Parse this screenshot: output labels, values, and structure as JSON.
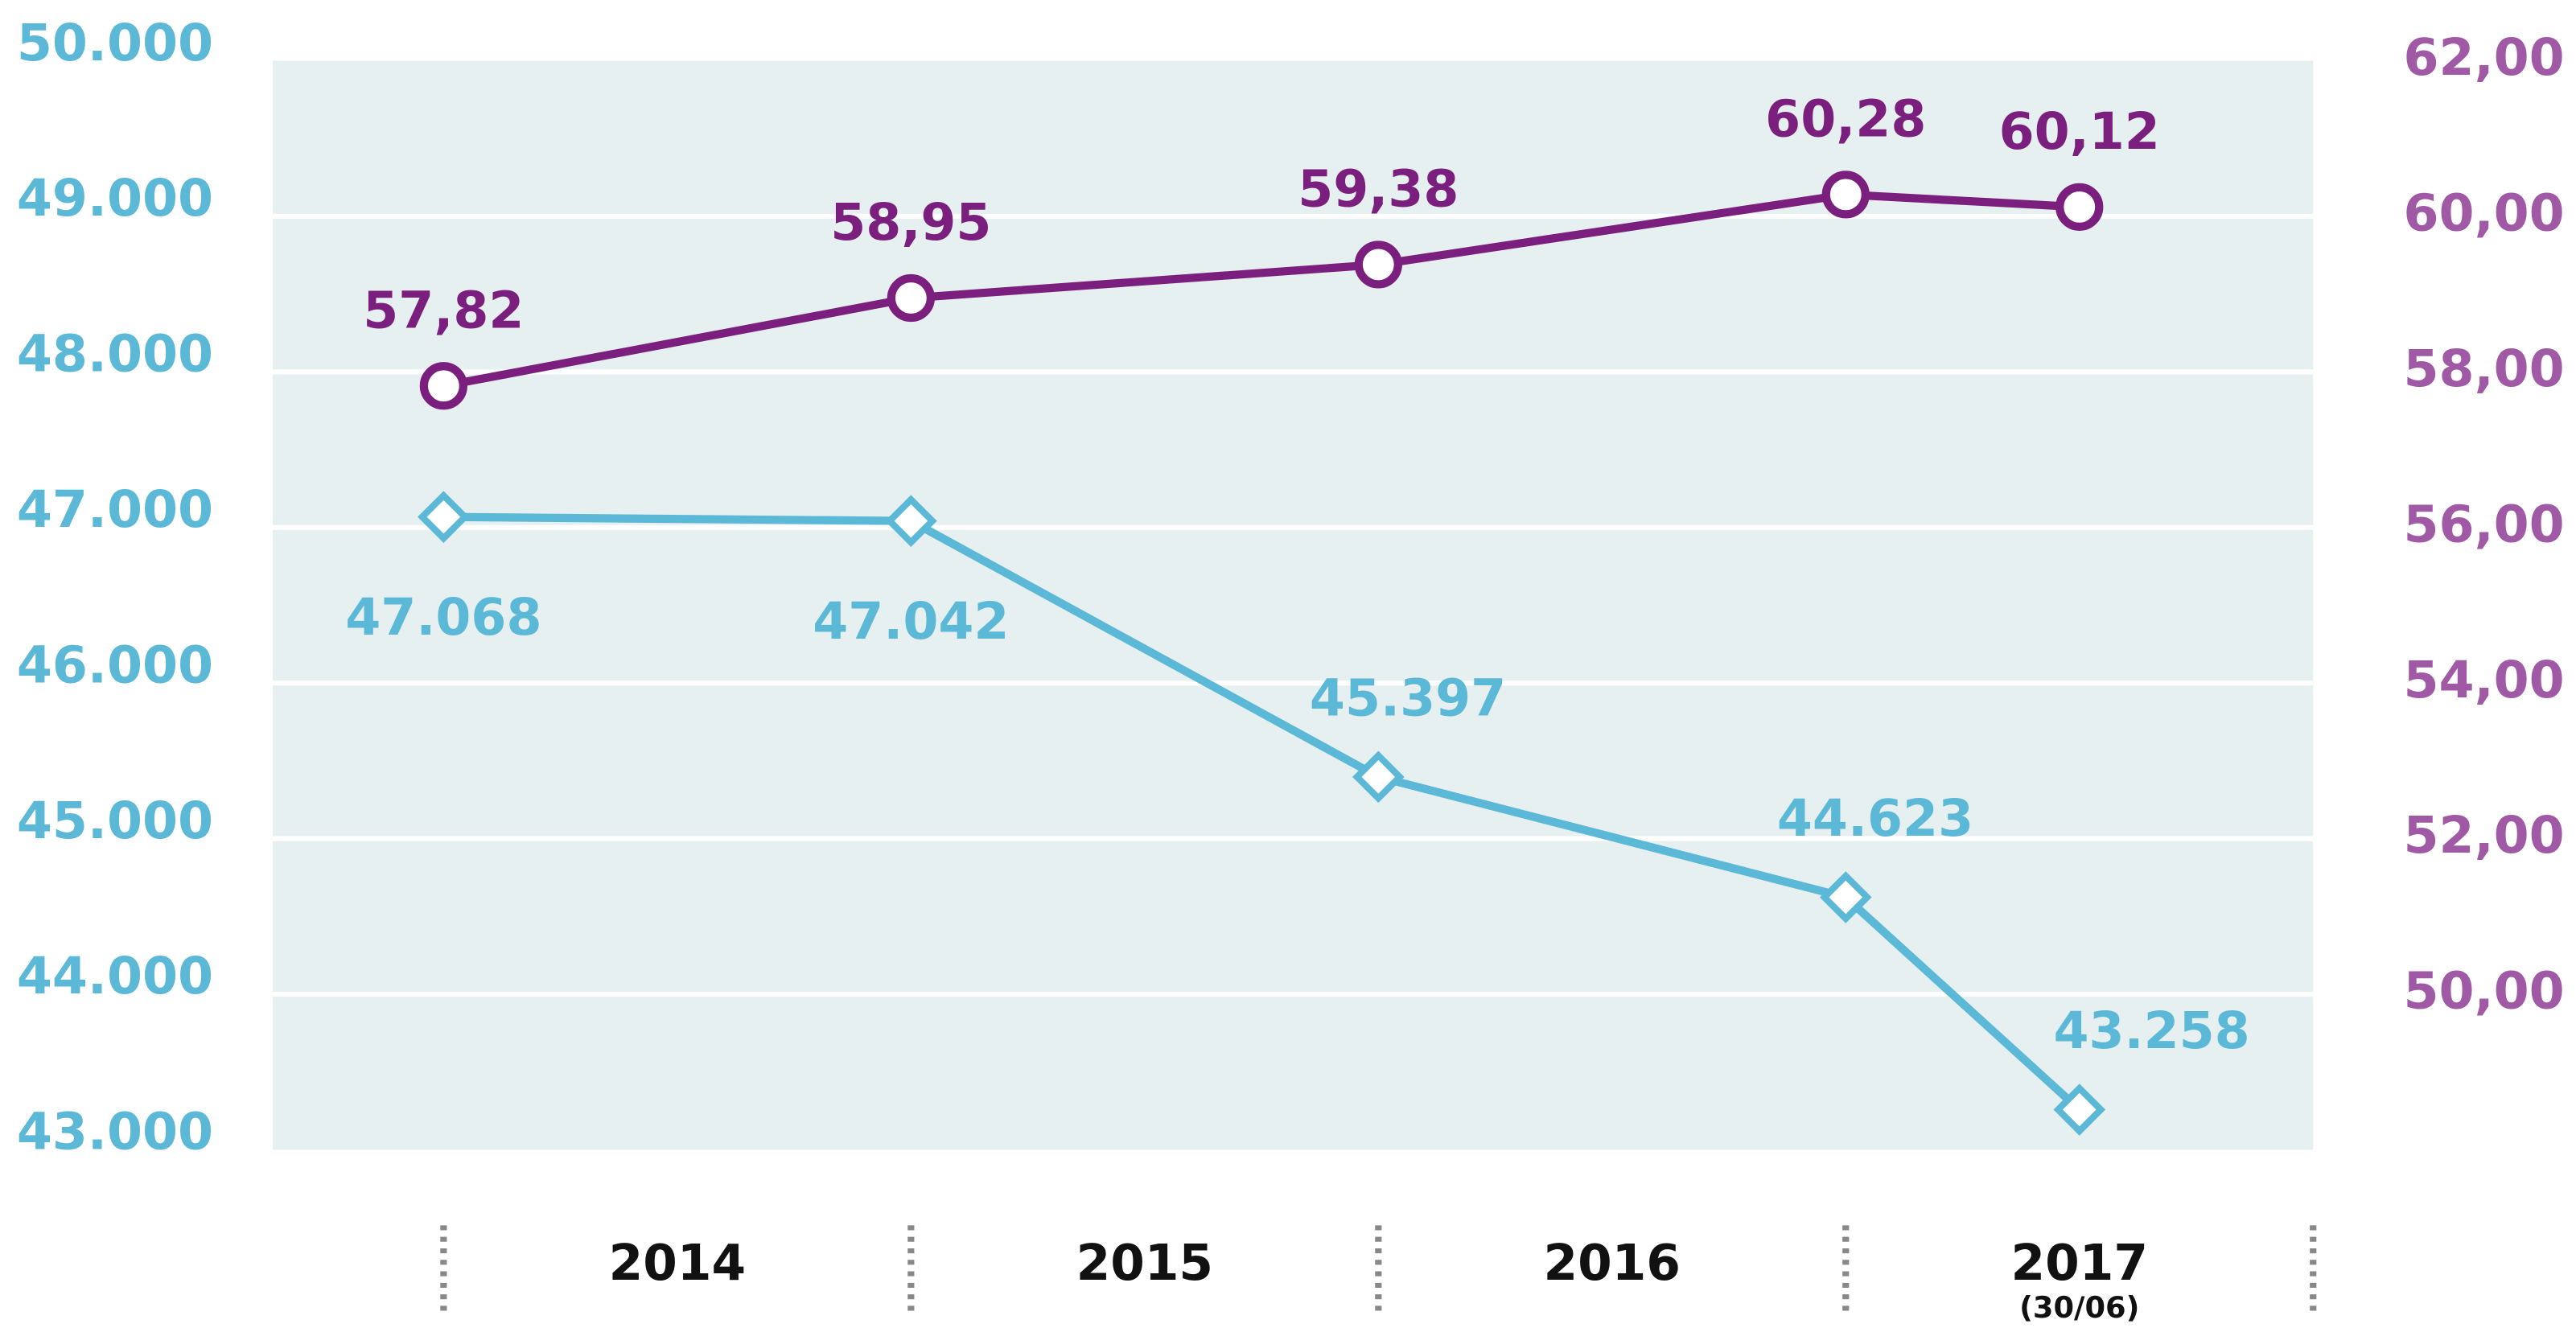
{
  "chart_data": {
    "type": "line",
    "categories": [
      "2014",
      "2015",
      "2016",
      "2017"
    ],
    "category_note": "(30/06)",
    "x": [
      2014,
      2015,
      2016,
      2017,
      2017.5
    ],
    "xlim": [
      2014,
      2018
    ],
    "series": [
      {
        "color": "#5bb8d6",
        "values": [
          47068,
          47042,
          45397,
          44623,
          43258
        ],
        "value_labels": [
          "47.068",
          "47.042",
          "45.397",
          "44.623",
          "43.258"
        ]
      },
      {
        "color": "#7b1f7e",
        "axis": "y2",
        "values": [
          57.82,
          58.95,
          59.38,
          60.28,
          60.12
        ],
        "value_labels": [
          "57,82",
          "58,95",
          "59,38",
          "60,28",
          "60,12"
        ]
      }
    ],
    "ylim": [
      43000,
      50000
    ],
    "yticks": [
      {
        "value": 43000,
        "label": "43.000"
      },
      {
        "value": 44000,
        "label": "44.000"
      },
      {
        "value": 45000,
        "label": "45.000"
      },
      {
        "value": 46000,
        "label": "46.000"
      },
      {
        "value": 47000,
        "label": "47.000"
      },
      {
        "value": 48000,
        "label": "48.000"
      },
      {
        "value": 49000,
        "label": "49.000"
      },
      {
        "value": 50000,
        "label": "50.000"
      }
    ],
    "ytick_color": "#5bb8d6",
    "y2lim": [
      48,
      62
    ],
    "y2ticks": [
      {
        "value": 50,
        "label": "50,00"
      },
      {
        "value": 52,
        "label": "52,00"
      },
      {
        "value": 54,
        "label": "54,00"
      },
      {
        "value": 56,
        "label": "56,00"
      },
      {
        "value": 58,
        "label": "58,00"
      },
      {
        "value": 60,
        "label": "60,00"
      },
      {
        "value": 62,
        "label": "62,00"
      }
    ],
    "y2tick_color": "#a05aa5",
    "grid": true
  }
}
